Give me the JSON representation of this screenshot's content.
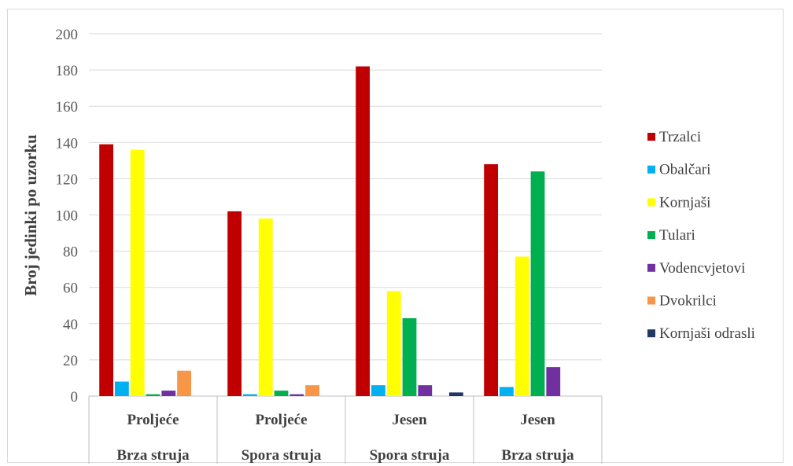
{
  "chart_data": {
    "type": "bar",
    "ylabel": "Broj jedinki po uzorku",
    "ylim": [
      0,
      200
    ],
    "yticks": [
      0,
      20,
      40,
      60,
      80,
      100,
      120,
      140,
      160,
      180,
      200
    ],
    "grid": true,
    "legend_position": "right",
    "categories": [
      [
        "Proljeće",
        "Brza struja"
      ],
      [
        "Proljeće",
        "Spora struja"
      ],
      [
        "Jesen",
        "Spora struja"
      ],
      [
        "Jesen",
        "Brza struja"
      ]
    ],
    "series": [
      {
        "name": "Trzalci",
        "color": "#c00000",
        "values": [
          139,
          102,
          182,
          128
        ]
      },
      {
        "name": "Obalčari",
        "color": "#00b0f0",
        "values": [
          8,
          1,
          6,
          5
        ]
      },
      {
        "name": "Kornjaši",
        "color": "#ffff00",
        "values": [
          136,
          98,
          58,
          77
        ]
      },
      {
        "name": "Tulari",
        "color": "#00b050",
        "values": [
          1,
          3,
          43,
          124
        ]
      },
      {
        "name": "Vodencvjetovi",
        "color": "#7030a0",
        "values": [
          3,
          1,
          6,
          16
        ]
      },
      {
        "name": "Dvokrilci",
        "color": "#f79646",
        "values": [
          14,
          6,
          0,
          0
        ]
      },
      {
        "name": "Kornjaši odrasli",
        "color": "#1f3864",
        "values": [
          0,
          0,
          2,
          0
        ]
      }
    ]
  }
}
